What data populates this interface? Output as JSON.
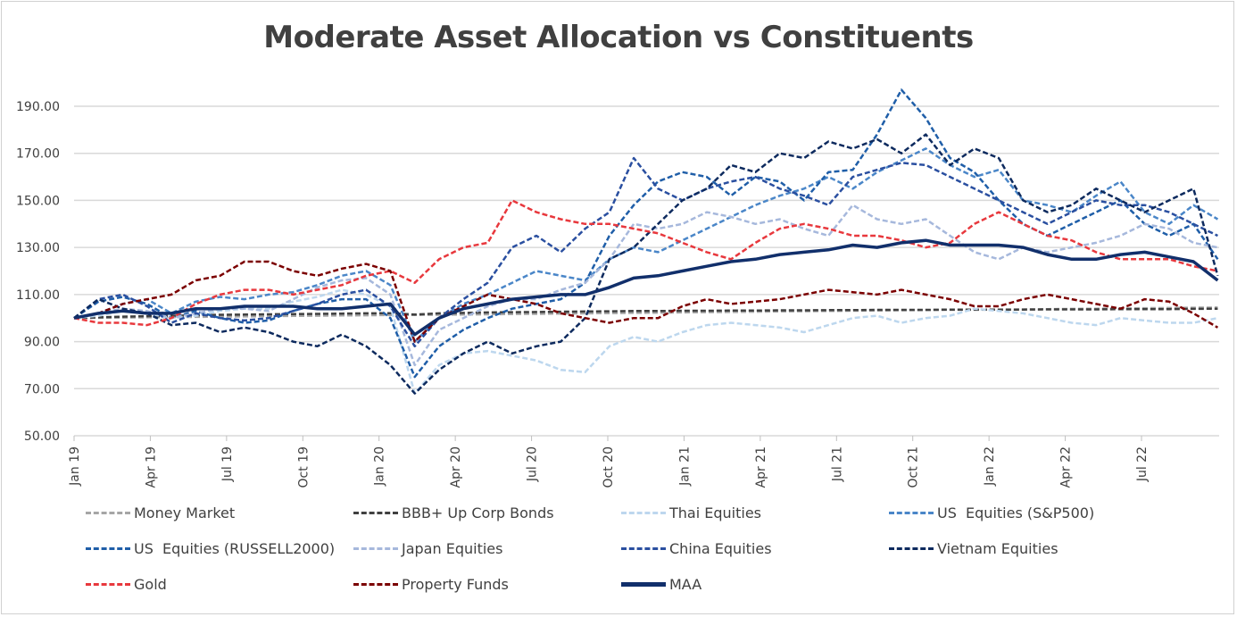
{
  "chart_data": {
    "type": "line",
    "title": "Moderate Asset Allocation vs Constituents",
    "xlabel": "",
    "ylabel": "",
    "ylim": [
      50,
      190
    ],
    "y_ticks": [
      "50.00",
      "70.00",
      "90.00",
      "110.00",
      "130.00",
      "150.00",
      "170.00",
      "190.00"
    ],
    "x_ticks": [
      "Jan 19",
      "Apr 19",
      "Jul 19",
      "Oct 19",
      "Jan 20",
      "Apr 20",
      "Jul 20",
      "Oct 20",
      "Jan 21",
      "Apr 21",
      "Jul 21",
      "Oct 21",
      "Jan 22",
      "Apr 22",
      "Jul 22"
    ],
    "x_range": [
      "Jan 19",
      "Oct 22"
    ],
    "grid": true,
    "legend_position": "bottom",
    "series": [
      {
        "name": "Money Market",
        "color": "#a6a6a6",
        "style": "dashed",
        "values": [
          100,
          100.1,
          100.2,
          100.3,
          100.4,
          100.5,
          100.6,
          100.7,
          100.8,
          100.9,
          101,
          101.1,
          101.2,
          101.3,
          101.3,
          101.4,
          101.5,
          101.6,
          101.7,
          101.8,
          101.9,
          102,
          102.1,
          102.2,
          102.3,
          102.4,
          102.5,
          102.6,
          102.7,
          102.8,
          102.9,
          103,
          103.1,
          103.2,
          103.3,
          103.4,
          103.5,
          103.5,
          103.6,
          103.7,
          103.8,
          103.9,
          104,
          104.1,
          104.2,
          104.3,
          104.4,
          104.5
        ]
      },
      {
        "name": "BBB+ Up Corp Bonds",
        "color": "#404040",
        "style": "dashed",
        "values": [
          100,
          100.3,
          100.6,
          100.8,
          101,
          101.2,
          101.4,
          101.5,
          101.6,
          101.7,
          101.8,
          101.9,
          102,
          102.1,
          101.5,
          102,
          102.2,
          102.4,
          102.5,
          102.6,
          102.7,
          102.8,
          102.9,
          103,
          103,
          103.1,
          103.1,
          103.2,
          103.2,
          103.3,
          103.3,
          103.4,
          103.4,
          103.5,
          103.5,
          103.5,
          103.6,
          103.6,
          103.6,
          103.6,
          103.7,
          103.7,
          103.7,
          103.8,
          103.8,
          103.8,
          103.9,
          104
        ]
      },
      {
        "name": "Thai Equities",
        "color": "#bdd7ee",
        "style": "dashed",
        "values": [
          100,
          101,
          103,
          102,
          100,
          101,
          103,
          104,
          104,
          107,
          109,
          112,
          110,
          105,
          68,
          80,
          85,
          86,
          84,
          82,
          78,
          77,
          88,
          92,
          90,
          94,
          97,
          98,
          97,
          96,
          94,
          97,
          100,
          101,
          98,
          100,
          101,
          104,
          103,
          102,
          100,
          98,
          97,
          100,
          99,
          98,
          98,
          100
        ]
      },
      {
        "name": "US  Equities (S&P500)",
        "color": "#4a86c8",
        "style": "dashed",
        "values": [
          100,
          102,
          106,
          108,
          102,
          107,
          109,
          108,
          110,
          111,
          114,
          118,
          120,
          114,
          90,
          100,
          106,
          110,
          115,
          120,
          118,
          116,
          125,
          130,
          128,
          133,
          138,
          143,
          148,
          152,
          155,
          160,
          155,
          162,
          167,
          172,
          165,
          160,
          163,
          150,
          148,
          145,
          152,
          158,
          145,
          140,
          148,
          142
        ]
      },
      {
        "name": "US  Equities (RUSSELL2000)",
        "color": "#1f5ea8",
        "style": "dashed",
        "values": [
          100,
          107,
          109,
          106,
          100,
          103,
          100,
          98,
          99,
          103,
          106,
          108,
          108,
          100,
          75,
          88,
          95,
          100,
          104,
          106,
          108,
          115,
          135,
          148,
          158,
          162,
          160,
          152,
          160,
          158,
          150,
          162,
          163,
          178,
          197,
          185,
          168,
          162,
          150,
          140,
          135,
          140,
          145,
          150,
          140,
          135,
          140,
          125
        ]
      },
      {
        "name": "Japan Equities",
        "color": "#a6b8dc",
        "style": "dashed",
        "values": [
          100,
          102,
          104,
          103,
          100,
          102,
          104,
          104,
          103,
          108,
          113,
          116,
          117,
          110,
          80,
          95,
          100,
          105,
          108,
          108,
          112,
          115,
          125,
          140,
          138,
          140,
          145,
          143,
          140,
          142,
          138,
          135,
          148,
          142,
          140,
          142,
          135,
          128,
          125,
          130,
          128,
          130,
          132,
          135,
          140,
          138,
          132,
          130
        ]
      },
      {
        "name": "China Equities",
        "color": "#2a4fa0",
        "style": "dashed",
        "values": [
          100,
          108,
          110,
          105,
          98,
          102,
          100,
          99,
          100,
          103,
          106,
          110,
          112,
          105,
          88,
          100,
          108,
          115,
          130,
          135,
          128,
          138,
          145,
          168,
          155,
          150,
          155,
          158,
          160,
          155,
          152,
          148,
          160,
          163,
          166,
          165,
          160,
          155,
          150,
          145,
          140,
          145,
          150,
          148,
          148,
          145,
          140,
          135
        ]
      },
      {
        "name": "Vietnam Equities",
        "color": "#0d2a5e",
        "style": "dashed",
        "values": [
          100,
          108,
          104,
          102,
          97,
          98,
          94,
          96,
          94,
          90,
          88,
          93,
          88,
          80,
          68,
          78,
          85,
          90,
          85,
          88,
          90,
          100,
          125,
          130,
          140,
          150,
          155,
          165,
          162,
          170,
          168,
          175,
          172,
          176,
          170,
          178,
          165,
          172,
          168,
          150,
          145,
          148,
          155,
          150,
          145,
          150,
          155,
          118
        ]
      },
      {
        "name": "Gold",
        "color": "#e8383d",
        "style": "dashed",
        "values": [
          100,
          98,
          98,
          97,
          100,
          106,
          110,
          112,
          112,
          110,
          112,
          114,
          118,
          120,
          115,
          125,
          130,
          132,
          150,
          145,
          142,
          140,
          140,
          138,
          136,
          132,
          128,
          125,
          132,
          138,
          140,
          138,
          135,
          135,
          133,
          130,
          132,
          140,
          145,
          140,
          135,
          133,
          128,
          125,
          125,
          125,
          122,
          120
        ]
      },
      {
        "name": "Property Funds",
        "color": "#7b0000",
        "style": "dashed",
        "values": [
          100,
          102,
          106,
          108,
          110,
          116,
          118,
          124,
          124,
          120,
          118,
          121,
          123,
          120,
          90,
          100,
          105,
          110,
          108,
          106,
          102,
          100,
          98,
          100,
          100,
          105,
          108,
          106,
          107,
          108,
          110,
          112,
          111,
          110,
          112,
          110,
          108,
          105,
          105,
          108,
          110,
          108,
          106,
          104,
          108,
          107,
          102,
          96
        ]
      },
      {
        "name": "MAA",
        "color": "#112f6b",
        "style": "solid",
        "values": [
          100,
          102,
          103,
          102,
          102,
          104,
          104,
          105,
          105,
          105,
          104,
          104,
          105,
          106,
          93,
          100,
          104,
          106,
          108,
          109,
          110,
          110,
          113,
          117,
          118,
          120,
          122,
          124,
          125,
          127,
          128,
          129,
          131,
          130,
          132,
          133,
          131,
          131,
          131,
          130,
          127,
          125,
          125,
          127,
          128,
          126,
          124,
          116
        ]
      }
    ]
  }
}
